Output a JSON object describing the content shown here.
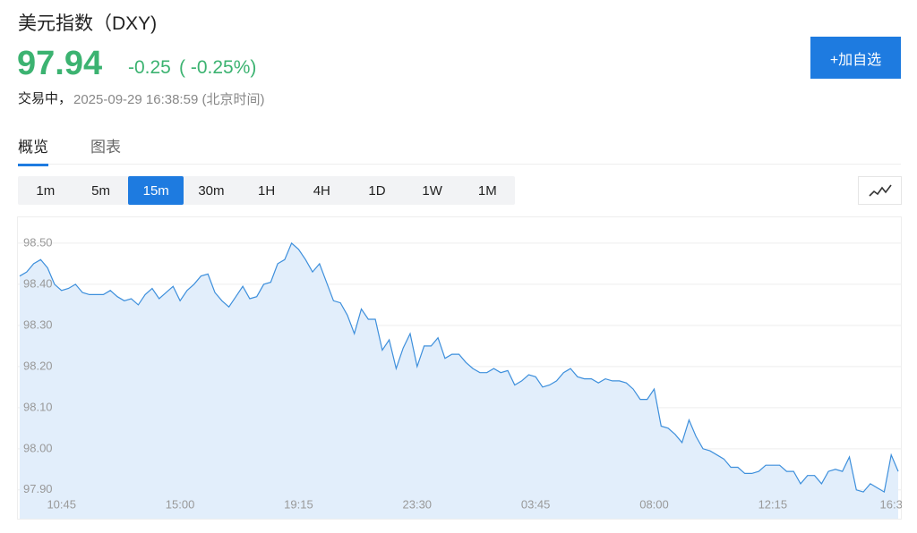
{
  "header": {
    "title": "美元指数（DXY)",
    "price": "97.94",
    "change": "-0.25",
    "change_pct": "( -0.25%)",
    "status": "交易中，",
    "timestamp": "2025-09-29 16:38:59 (北京时间)",
    "button": "+加自选"
  },
  "tabs": [
    "概览",
    "图表"
  ],
  "active_tab": 0,
  "intervals": [
    "1m",
    "5m",
    "15m",
    "30m",
    "1H",
    "4H",
    "1D",
    "1W",
    "1M"
  ],
  "active_interval": 2,
  "chart_data": {
    "type": "area",
    "color": "#3d8fdc",
    "fill": "#e2eefb",
    "grid": true,
    "categories": [
      null,
      null,
      null,
      null,
      null,
      null,
      "10:45",
      null,
      null,
      null,
      null,
      null,
      null,
      null,
      null,
      null,
      null,
      null,
      null,
      null,
      null,
      null,
      null,
      "15:00",
      null,
      null,
      null,
      null,
      null,
      null,
      null,
      null,
      null,
      null,
      null,
      null,
      null,
      null,
      null,
      null,
      "19:15",
      null,
      null,
      null,
      null,
      null,
      null,
      null,
      null,
      null,
      null,
      null,
      null,
      null,
      null,
      null,
      null,
      "23:30",
      null,
      null,
      null,
      null,
      null,
      null,
      null,
      null,
      null,
      null,
      null,
      null,
      null,
      null,
      null,
      null,
      "03:45",
      null,
      null,
      null,
      null,
      null,
      null,
      null,
      null,
      null,
      null,
      null,
      null,
      null,
      null,
      null,
      null,
      "08:00",
      null,
      null,
      null,
      null,
      null,
      null,
      null,
      null,
      null,
      null,
      null,
      null,
      null,
      null,
      null,
      null,
      "12:15",
      null,
      null,
      null,
      null,
      null,
      null,
      null,
      null,
      null,
      null,
      null,
      null,
      null,
      null,
      null,
      null,
      "16:3",
      null
    ],
    "values": [
      98.42,
      98.43,
      98.45,
      98.46,
      98.44,
      98.4,
      98.385,
      98.39,
      98.4,
      98.38,
      98.375,
      98.375,
      98.375,
      98.385,
      98.37,
      98.36,
      98.365,
      98.35,
      98.375,
      98.39,
      98.365,
      98.38,
      98.395,
      98.36,
      98.385,
      98.4,
      98.42,
      98.425,
      98.38,
      98.36,
      98.345,
      98.37,
      98.395,
      98.365,
      98.37,
      98.4,
      98.405,
      98.45,
      98.46,
      98.5,
      98.485,
      98.46,
      98.43,
      98.45,
      98.405,
      98.36,
      98.355,
      98.325,
      98.28,
      98.34,
      98.315,
      98.315,
      98.24,
      98.265,
      98.195,
      98.245,
      98.28,
      98.2,
      98.25,
      98.25,
      98.27,
      98.22,
      98.23,
      98.23,
      98.21,
      98.195,
      98.185,
      98.185,
      98.195,
      98.185,
      98.19,
      98.155,
      98.165,
      98.18,
      98.175,
      98.15,
      98.155,
      98.165,
      98.185,
      98.195,
      98.175,
      98.17,
      98.17,
      98.16,
      98.17,
      98.165,
      98.165,
      98.16,
      98.145,
      98.12,
      98.12,
      98.145,
      98.055,
      98.05,
      98.035,
      98.015,
      98.07,
      98.03,
      98.0,
      97.995,
      97.985,
      97.975,
      97.955,
      97.955,
      97.94,
      97.94,
      97.945,
      97.96,
      97.96,
      97.96,
      97.945,
      97.945,
      97.915,
      97.935,
      97.935,
      97.915,
      97.945,
      97.95,
      97.945,
      97.98,
      97.9,
      97.895,
      97.915,
      97.905,
      97.895,
      97.985,
      97.945
    ],
    "ylim": [
      97.83,
      98.565
    ],
    "yticks": [
      {
        "value": 97.9,
        "label": "97.90"
      },
      {
        "value": 98.0,
        "label": "98.00"
      },
      {
        "value": 98.1,
        "label": "98.10"
      },
      {
        "value": 98.2,
        "label": "98.20"
      },
      {
        "value": 98.3,
        "label": "98.30"
      },
      {
        "value": 98.4,
        "label": "98.40"
      },
      {
        "value": 98.5,
        "label": "98.50"
      }
    ]
  }
}
